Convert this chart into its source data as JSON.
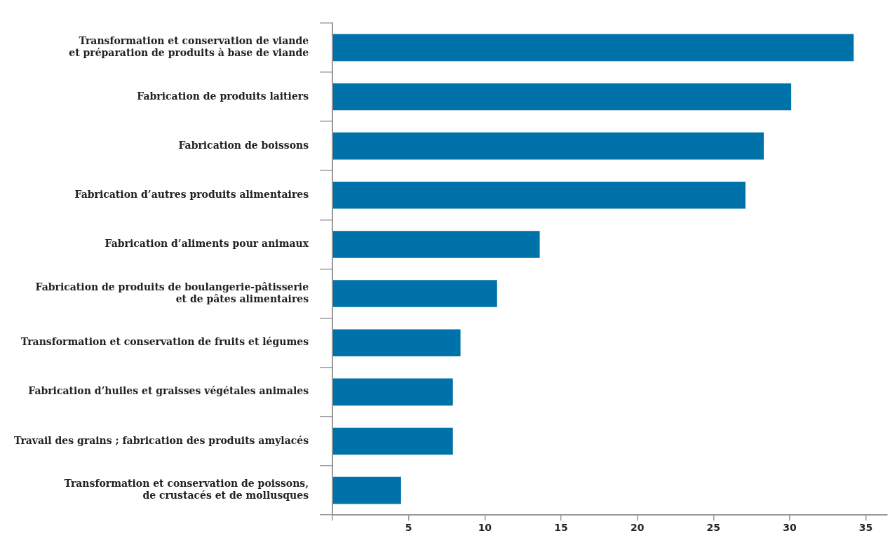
{
  "chart_data": {
    "type": "bar",
    "orientation": "horizontal",
    "categories": [
      "Transformation et conservation de viande\net préparation de produits à base de viande",
      "Fabrication de produits laitiers",
      "Fabrication de boissons",
      "Fabrication d’autres produits alimentaires",
      "Fabrication d’aliments pour animaux",
      "Fabrication de produits de boulangerie-pâtisserie\net de pâtes alimentaires",
      "Transformation et conservation de fruits et légumes",
      "Fabrication d’huiles et graisses végétales animales",
      "Travail des grains ; fabrication des produits amylacés",
      "Transformation et conservation de poissons,\nde crustacés et de mollusques"
    ],
    "values": [
      34.2,
      30.1,
      28.3,
      27.1,
      13.6,
      10.8,
      8.4,
      7.9,
      7.9,
      4.5
    ],
    "color": "#0072aa",
    "xlim": [
      0,
      36.4
    ],
    "xticks": [
      {
        "value": 0,
        "label": null
      },
      5,
      10,
      15,
      20,
      25,
      30,
      35
    ],
    "grid": false,
    "legend": false
  }
}
